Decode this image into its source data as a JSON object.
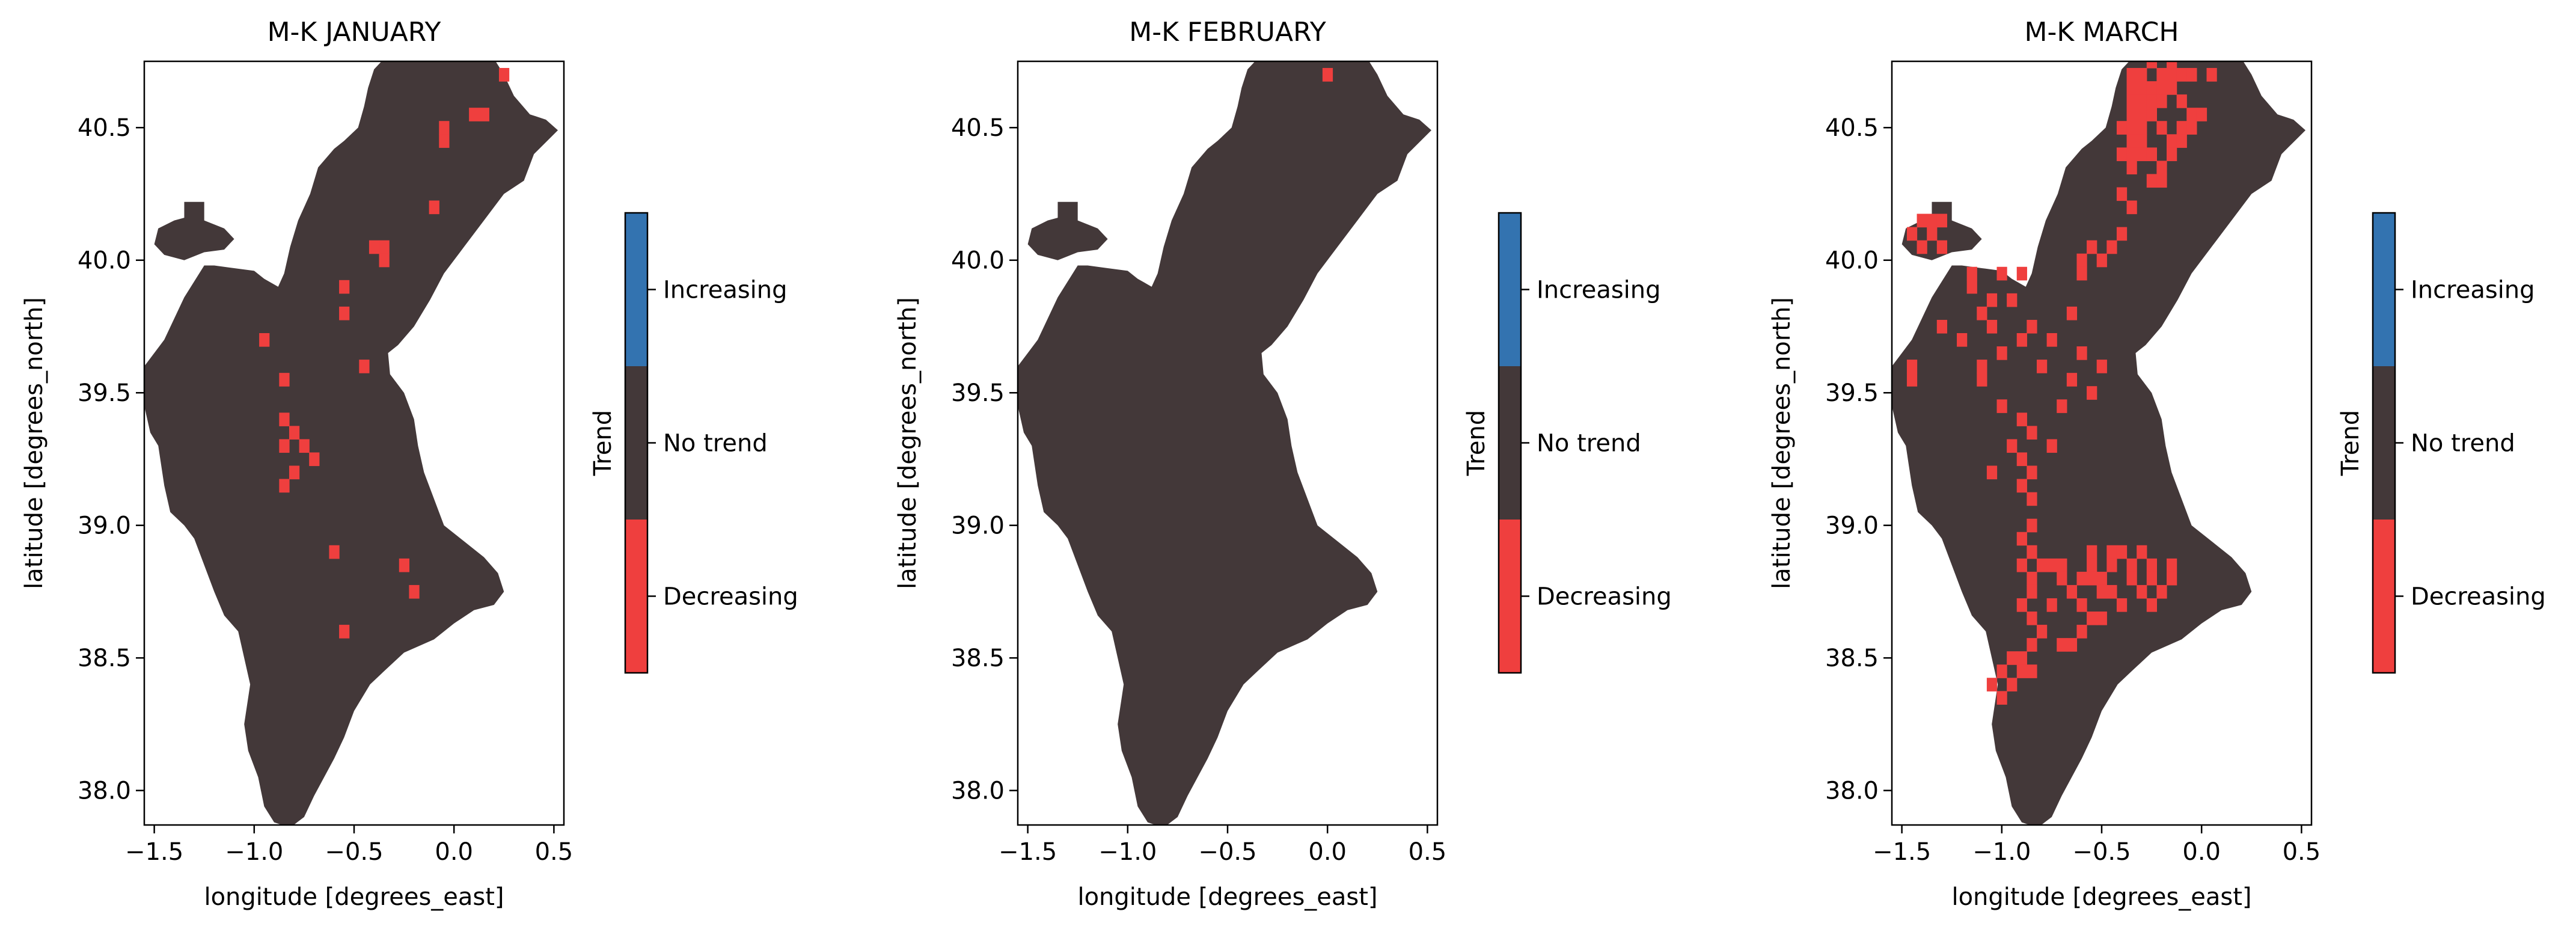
{
  "colors": {
    "no_trend": "#433839",
    "decreasing": "#ef3f3e",
    "increasing": "#3373b0",
    "axis": "#000000",
    "background": "#ffffff"
  },
  "chart_data": [
    {
      "type": "heatmap",
      "title": "M-K JANUARY",
      "xlabel": "longitude [degrees_east]",
      "ylabel": "latitude [degrees_north]",
      "xlim": [
        -1.55,
        0.55
      ],
      "ylim": [
        37.87,
        40.75
      ],
      "xticks": [
        "−1.5",
        "−1.0",
        "−0.5",
        "0.0",
        "0.5"
      ],
      "yticks": [
        "38.0",
        "38.5",
        "39.0",
        "39.5",
        "40.0",
        "40.5"
      ],
      "colorbar_label": "Trend",
      "colorbar_categories": [
        "Increasing",
        "No trend",
        "Decreasing"
      ],
      "decreasing_cells": [
        [
          0.25,
          40.7
        ],
        [
          0.1,
          40.55
        ],
        [
          0.15,
          40.55
        ],
        [
          -0.05,
          40.5
        ],
        [
          -0.05,
          40.45
        ],
        [
          -0.1,
          40.2
        ],
        [
          -0.35,
          40.05
        ],
        [
          -0.4,
          40.05
        ],
        [
          -0.35,
          40.0
        ],
        [
          -0.55,
          39.9
        ],
        [
          -0.55,
          39.8
        ],
        [
          -0.95,
          39.7
        ],
        [
          -0.45,
          39.6
        ],
        [
          -0.85,
          39.55
        ],
        [
          -0.85,
          39.4
        ],
        [
          -0.8,
          39.35
        ],
        [
          -0.85,
          39.3
        ],
        [
          -0.75,
          39.3
        ],
        [
          -0.7,
          39.25
        ],
        [
          -0.8,
          39.2
        ],
        [
          -0.85,
          39.15
        ],
        [
          -0.6,
          38.9
        ],
        [
          -0.25,
          38.85
        ],
        [
          -0.2,
          38.75
        ],
        [
          -0.55,
          38.6
        ]
      ]
    },
    {
      "type": "heatmap",
      "title": "M-K FEBRUARY",
      "xlabel": "longitude [degrees_east]",
      "ylabel": "latitude [degrees_north]",
      "xlim": [
        -1.55,
        0.55
      ],
      "ylim": [
        37.87,
        40.75
      ],
      "xticks": [
        "−1.5",
        "−1.0",
        "−0.5",
        "0.0",
        "0.5"
      ],
      "yticks": [
        "38.0",
        "38.5",
        "39.0",
        "39.5",
        "40.0",
        "40.5"
      ],
      "colorbar_label": "Trend",
      "colorbar_categories": [
        "Increasing",
        "No trend",
        "Decreasing"
      ],
      "decreasing_cells": [
        [
          0.0,
          40.7
        ]
      ]
    },
    {
      "type": "heatmap",
      "title": "M-K MARCH",
      "xlabel": "longitude [degrees_east]",
      "ylabel": "latitude [degrees_north]",
      "xlim": [
        -1.55,
        0.55
      ],
      "ylim": [
        37.87,
        40.75
      ],
      "xticks": [
        "−1.5",
        "−1.0",
        "−0.5",
        "0.0",
        "0.5"
      ],
      "yticks": [
        "38.0",
        "38.5",
        "39.0",
        "39.5",
        "40.0",
        "40.5"
      ],
      "colorbar_label": "Trend",
      "colorbar_categories": [
        "Increasing",
        "No trend",
        "Decreasing"
      ],
      "decreasing_cells": [
        [
          -0.25,
          40.75
        ],
        [
          -0.15,
          40.75
        ],
        [
          -0.35,
          40.7
        ],
        [
          -0.3,
          40.7
        ],
        [
          -0.2,
          40.7
        ],
        [
          -0.15,
          40.7
        ],
        [
          -0.1,
          40.7
        ],
        [
          -0.05,
          40.7
        ],
        [
          0.05,
          40.7
        ],
        [
          -0.35,
          40.65
        ],
        [
          -0.3,
          40.65
        ],
        [
          -0.25,
          40.65
        ],
        [
          -0.2,
          40.65
        ],
        [
          -0.15,
          40.65
        ],
        [
          -0.35,
          40.6
        ],
        [
          -0.3,
          40.6
        ],
        [
          -0.25,
          40.6
        ],
        [
          -0.2,
          40.6
        ],
        [
          -0.1,
          40.6
        ],
        [
          -0.35,
          40.55
        ],
        [
          -0.3,
          40.55
        ],
        [
          -0.25,
          40.55
        ],
        [
          -0.05,
          40.55
        ],
        [
          0.0,
          40.55
        ],
        [
          -0.4,
          40.5
        ],
        [
          -0.35,
          40.5
        ],
        [
          -0.3,
          40.5
        ],
        [
          -0.2,
          40.5
        ],
        [
          -0.1,
          40.5
        ],
        [
          -0.05,
          40.5
        ],
        [
          -0.35,
          40.45
        ],
        [
          -0.3,
          40.45
        ],
        [
          -0.15,
          40.45
        ],
        [
          -0.1,
          40.45
        ],
        [
          -0.4,
          40.4
        ],
        [
          -0.35,
          40.4
        ],
        [
          -0.3,
          40.4
        ],
        [
          -0.25,
          40.4
        ],
        [
          -0.15,
          40.4
        ],
        [
          -0.35,
          40.35
        ],
        [
          -0.2,
          40.35
        ],
        [
          -0.25,
          40.3
        ],
        [
          -0.2,
          40.3
        ],
        [
          -0.4,
          40.25
        ],
        [
          -0.35,
          40.2
        ],
        [
          -1.4,
          40.15
        ],
        [
          -1.35,
          40.15
        ],
        [
          -1.3,
          40.15
        ],
        [
          -1.45,
          40.1
        ],
        [
          -1.35,
          40.1
        ],
        [
          -1.4,
          40.05
        ],
        [
          -1.3,
          40.05
        ],
        [
          -0.4,
          40.1
        ],
        [
          -0.45,
          40.05
        ],
        [
          -0.55,
          40.05
        ],
        [
          -0.5,
          40.0
        ],
        [
          -0.6,
          40.0
        ],
        [
          -0.6,
          39.95
        ],
        [
          -1.15,
          39.95
        ],
        [
          -1.0,
          39.95
        ],
        [
          -0.9,
          39.95
        ],
        [
          -1.15,
          39.9
        ],
        [
          -1.05,
          39.85
        ],
        [
          -0.95,
          39.85
        ],
        [
          -1.1,
          39.8
        ],
        [
          -0.65,
          39.8
        ],
        [
          -1.3,
          39.75
        ],
        [
          -1.05,
          39.75
        ],
        [
          -0.85,
          39.75
        ],
        [
          -1.2,
          39.7
        ],
        [
          -0.9,
          39.7
        ],
        [
          -0.75,
          39.7
        ],
        [
          -1.0,
          39.65
        ],
        [
          -0.6,
          39.65
        ],
        [
          -1.45,
          39.6
        ],
        [
          -1.1,
          39.6
        ],
        [
          -0.8,
          39.6
        ],
        [
          -0.5,
          39.6
        ],
        [
          -1.45,
          39.55
        ],
        [
          -1.1,
          39.55
        ],
        [
          -0.65,
          39.55
        ],
        [
          -0.55,
          39.5
        ],
        [
          -1.0,
          39.45
        ],
        [
          -0.7,
          39.45
        ],
        [
          -0.9,
          39.4
        ],
        [
          -0.85,
          39.35
        ],
        [
          -0.95,
          39.3
        ],
        [
          -0.75,
          39.3
        ],
        [
          -0.9,
          39.25
        ],
        [
          -1.05,
          39.2
        ],
        [
          -0.85,
          39.2
        ],
        [
          -0.9,
          39.15
        ],
        [
          -0.85,
          39.1
        ],
        [
          -0.85,
          39.0
        ],
        [
          -0.9,
          38.95
        ],
        [
          -0.85,
          38.9
        ],
        [
          -0.55,
          38.9
        ],
        [
          -0.45,
          38.9
        ],
        [
          -0.4,
          38.9
        ],
        [
          -0.3,
          38.9
        ],
        [
          -0.9,
          38.85
        ],
        [
          -0.8,
          38.85
        ],
        [
          -0.75,
          38.85
        ],
        [
          -0.7,
          38.85
        ],
        [
          -0.55,
          38.85
        ],
        [
          -0.45,
          38.85
        ],
        [
          -0.35,
          38.85
        ],
        [
          -0.25,
          38.85
        ],
        [
          -0.15,
          38.85
        ],
        [
          -0.85,
          38.8
        ],
        [
          -0.7,
          38.8
        ],
        [
          -0.6,
          38.8
        ],
        [
          -0.55,
          38.8
        ],
        [
          -0.5,
          38.8
        ],
        [
          -0.35,
          38.8
        ],
        [
          -0.25,
          38.8
        ],
        [
          -0.15,
          38.8
        ],
        [
          -0.85,
          38.75
        ],
        [
          -0.65,
          38.75
        ],
        [
          -0.5,
          38.75
        ],
        [
          -0.45,
          38.75
        ],
        [
          -0.3,
          38.75
        ],
        [
          -0.2,
          38.75
        ],
        [
          -0.9,
          38.7
        ],
        [
          -0.75,
          38.7
        ],
        [
          -0.6,
          38.7
        ],
        [
          -0.4,
          38.7
        ],
        [
          -0.25,
          38.7
        ],
        [
          -0.85,
          38.65
        ],
        [
          -0.55,
          38.65
        ],
        [
          -0.5,
          38.65
        ],
        [
          -0.8,
          38.6
        ],
        [
          -0.6,
          38.6
        ],
        [
          -0.7,
          38.55
        ],
        [
          -0.65,
          38.55
        ],
        [
          -0.85,
          38.55
        ],
        [
          -0.95,
          38.5
        ],
        [
          -0.9,
          38.5
        ],
        [
          -1.0,
          38.45
        ],
        [
          -0.9,
          38.45
        ],
        [
          -0.85,
          38.45
        ],
        [
          -1.05,
          38.4
        ],
        [
          -0.95,
          38.4
        ],
        [
          -1.0,
          38.35
        ]
      ]
    }
  ]
}
